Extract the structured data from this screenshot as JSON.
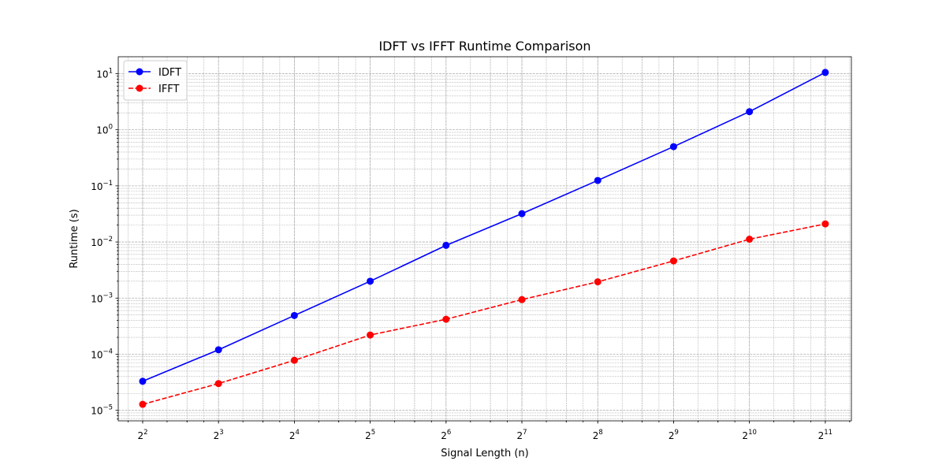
{
  "chart_data": {
    "type": "line",
    "title": "IDFT vs IFFT Runtime Comparison",
    "xlabel": "Signal Length (n)",
    "ylabel": "Runtime (s)",
    "x_scale": "log2",
    "y_scale": "log10",
    "x": [
      4,
      8,
      16,
      32,
      64,
      128,
      256,
      512,
      1024,
      2048
    ],
    "xlim": [
      3.2,
      2600
    ],
    "ylim": [
      6.5e-06,
      20
    ],
    "x_tick_labels": [
      {
        "base": "2",
        "exp": "2"
      },
      {
        "base": "2",
        "exp": "3"
      },
      {
        "base": "2",
        "exp": "4"
      },
      {
        "base": "2",
        "exp": "5"
      },
      {
        "base": "2",
        "exp": "6"
      },
      {
        "base": "2",
        "exp": "7"
      },
      {
        "base": "2",
        "exp": "8"
      },
      {
        "base": "2",
        "exp": "9"
      },
      {
        "base": "2",
        "exp": "10"
      },
      {
        "base": "2",
        "exp": "11"
      }
    ],
    "y_ticks": [
      1e-05,
      0.0001,
      0.001,
      0.01,
      0.1,
      1,
      10
    ],
    "y_tick_labels": [
      {
        "base": "10",
        "exp": "−5"
      },
      {
        "base": "10",
        "exp": "−4"
      },
      {
        "base": "10",
        "exp": "−3"
      },
      {
        "base": "10",
        "exp": "−2"
      },
      {
        "base": "10",
        "exp": "−1"
      },
      {
        "base": "10",
        "exp": "0"
      },
      {
        "base": "10",
        "exp": "1"
      }
    ],
    "grid": true,
    "legend_position": "top-left",
    "series": [
      {
        "name": "IDFT",
        "color": "#0000ff",
        "line_style": "solid",
        "marker": "circle",
        "values": [
          3.3e-05,
          0.00012,
          0.00049,
          0.002,
          0.0087,
          0.032,
          0.125,
          0.5,
          2.1,
          10.5
        ]
      },
      {
        "name": "IFFT",
        "color": "#ff0000",
        "line_style": "dashed",
        "marker": "circle",
        "values": [
          1.28e-05,
          3e-05,
          7.8e-05,
          0.00022,
          0.00042,
          0.00094,
          0.00195,
          0.0046,
          0.0112,
          0.021
        ]
      }
    ]
  }
}
